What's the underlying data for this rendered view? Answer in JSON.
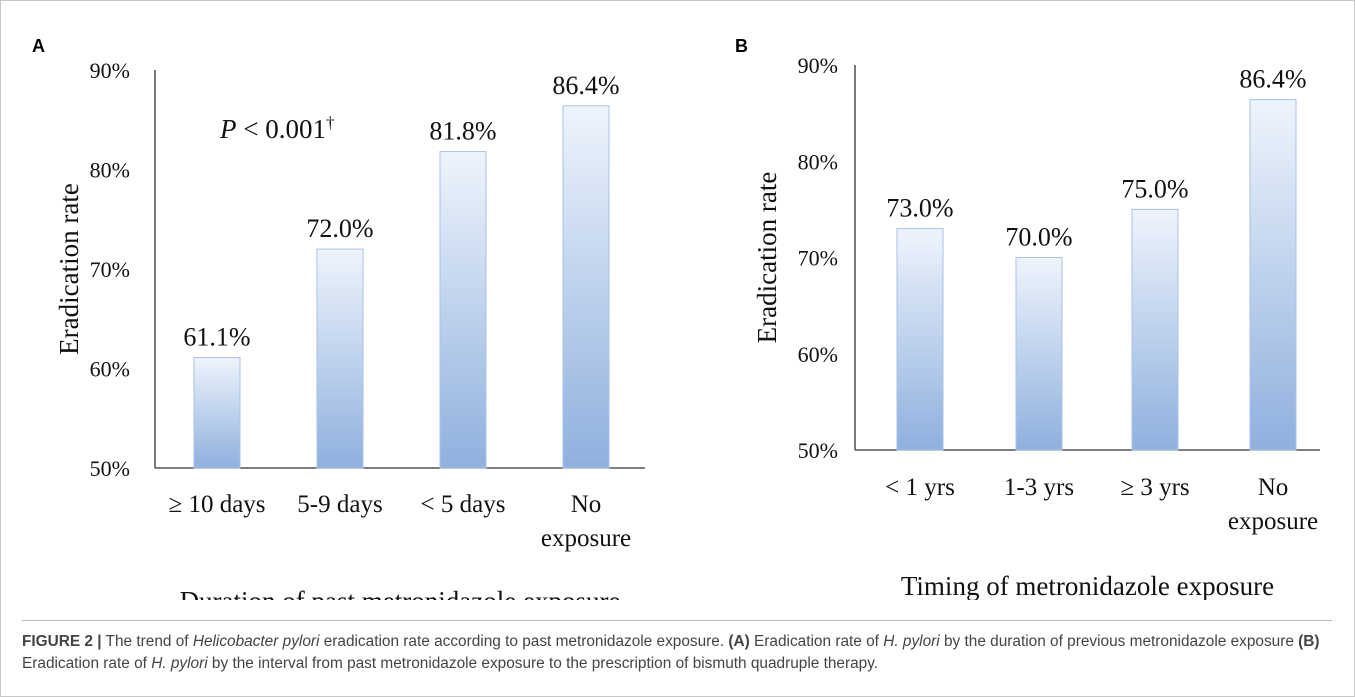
{
  "chart_data": [
    {
      "panel": "A",
      "type": "bar",
      "ylabel": "Eradication rate",
      "xlabel": "Duration of past metronidazole exposure",
      "ylim": [
        50,
        90
      ],
      "yticks": [
        "50%",
        "60%",
        "70%",
        "80%",
        "90%"
      ],
      "categories": [
        [
          "≥ 10 days"
        ],
        [
          "5-9 days"
        ],
        [
          "< 5 days"
        ],
        [
          "No",
          "exposure"
        ]
      ],
      "values": [
        61.1,
        72.0,
        81.8,
        86.4
      ],
      "value_labels": [
        "61.1%",
        "72.0%",
        "81.8%",
        "86.4%"
      ],
      "annotation": {
        "italic": "P",
        "text": " < 0.001",
        "sup": "†"
      },
      "bar_color": "#8fb0de"
    },
    {
      "panel": "B",
      "type": "bar",
      "ylabel": "Eradication rate",
      "xlabel": "Timing of metronidazole exposure",
      "ylim": [
        50,
        90
      ],
      "yticks": [
        "50%",
        "60%",
        "70%",
        "80%",
        "90%"
      ],
      "categories": [
        [
          "< 1 yrs"
        ],
        [
          "1-3 yrs"
        ],
        [
          "≥ 3 yrs"
        ],
        [
          "No",
          "exposure"
        ]
      ],
      "values": [
        73.0,
        70.0,
        75.0,
        86.4
      ],
      "value_labels": [
        "73.0%",
        "70.0%",
        "75.0%",
        "86.4%"
      ],
      "bar_color": "#8fb0de"
    }
  ],
  "caption": {
    "figure_label": "FIGURE 2 |",
    "segments": [
      {
        "t": " The trend of ",
        "s": "n"
      },
      {
        "t": "Helicobacter pylori",
        "s": "i"
      },
      {
        "t": " eradication rate according to past metronidazole exposure. ",
        "s": "n"
      },
      {
        "t": "(A)",
        "s": "b"
      },
      {
        "t": " Eradication rate of ",
        "s": "n"
      },
      {
        "t": "H. pylori",
        "s": "i"
      },
      {
        "t": " by the duration of previous metronidazole exposure ",
        "s": "n"
      },
      {
        "t": "(B)",
        "s": "b"
      },
      {
        "t": " Eradication rate of ",
        "s": "n"
      },
      {
        "t": "H. pylori",
        "s": "i"
      },
      {
        "t": " by the interval from past metronidazole exposure to the prescription of bismuth quadruple therapy.",
        "s": "n"
      }
    ]
  }
}
